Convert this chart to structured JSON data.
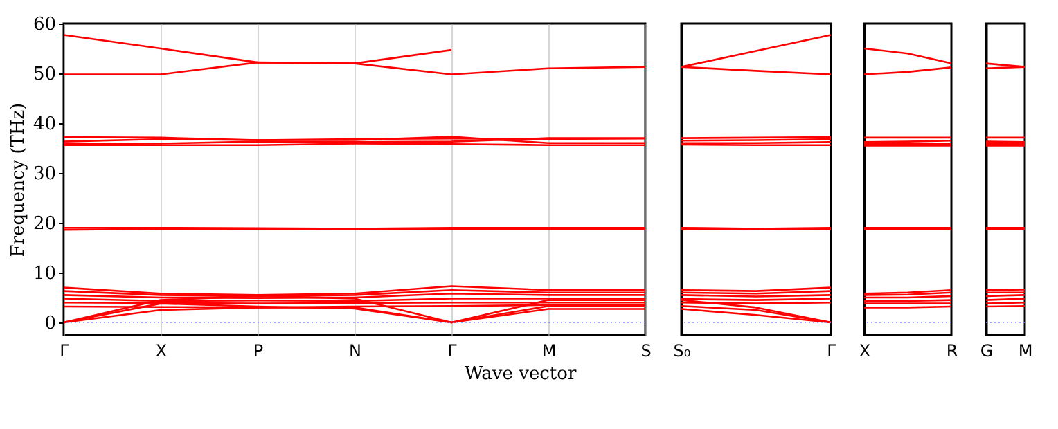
{
  "chart_data": [
    {
      "type": "line",
      "ylabel": "Frequency (THz)",
      "xlabel": "Wave vector",
      "legend": false,
      "grid": "x",
      "ylim": [
        -2.5,
        60
      ],
      "yticks": [
        0,
        10,
        20,
        30,
        40,
        50,
        60
      ],
      "categories": [
        "Γ",
        "X",
        "P",
        "N",
        "Γ",
        "M",
        "S"
      ],
      "ref_lines": [
        {
          "axis": "y",
          "value": 0,
          "color": "#8888ff",
          "line_style": "dotted"
        }
      ],
      "series": [
        {
          "color": "#ff0000",
          "values": [
            57.7,
            55,
            52.2,
            52,
            54.7,
            null,
            null
          ]
        },
        {
          "color": "#ff0000",
          "values": [
            49.8,
            49.8,
            52.2,
            52,
            49.8,
            51,
            51.3
          ]
        },
        {
          "color": "#ff0000",
          "values": [
            37.2,
            37.1,
            36.6,
            36.6,
            37.3,
            36,
            36
          ]
        },
        {
          "color": "#ff0000",
          "values": [
            36.3,
            36.8,
            36.6,
            36.8,
            36.9,
            36.8,
            36.9
          ]
        },
        {
          "color": "#ff0000",
          "values": [
            35.8,
            35.9,
            36.3,
            36.2,
            36.3,
            37,
            37
          ]
        },
        {
          "color": "#ff0000",
          "values": [
            35.6,
            35.6,
            35.6,
            35.9,
            35.8,
            35.6,
            35.6
          ]
        },
        {
          "color": "#ff0000",
          "values": [
            19,
            19,
            18.9,
            18.8,
            19,
            19,
            19
          ]
        },
        {
          "color": "#ff0000",
          "values": [
            18.6,
            18.8,
            18.8,
            18.8,
            18.8,
            18.8,
            18.8
          ]
        },
        {
          "color": "#ff0000",
          "values": [
            0,
            2.5,
            3,
            3,
            0,
            2.7,
            2.7
          ]
        },
        {
          "color": "#ff0000",
          "values": [
            0,
            3.8,
            3.2,
            2.8,
            0,
            3.3,
            3.3
          ]
        },
        {
          "color": "#ff0000",
          "values": [
            0,
            4.5,
            5.3,
            4.8,
            0,
            4.5,
            4.5
          ]
        },
        {
          "color": "#ff0000",
          "values": [
            7,
            5.8,
            5.5,
            5.8,
            7.3,
            6.5,
            6.5
          ]
        },
        {
          "color": "#ff0000",
          "values": [
            6.3,
            5.5,
            5.2,
            5.5,
            6.5,
            6,
            6
          ]
        },
        {
          "color": "#ff0000",
          "values": [
            5.5,
            5,
            4.9,
            5,
            5.8,
            5.5,
            5.5
          ]
        },
        {
          "color": "#ff0000",
          "values": [
            4.8,
            4.3,
            4.4,
            4.3,
            4.8,
            4.8,
            4.8
          ]
        },
        {
          "color": "#ff0000",
          "values": [
            4,
            3.9,
            3.8,
            3.9,
            4,
            4,
            4
          ]
        },
        {
          "color": "#ff0000",
          "values": [
            3.2,
            3.1,
            3,
            3.2,
            3.3,
            3.5,
            3.5
          ]
        }
      ]
    },
    {
      "type": "line",
      "legend": false,
      "tick_labels": "x",
      "ylim": [
        -2.5,
        60
      ],
      "categories": [
        "S₀",
        null,
        "Γ"
      ],
      "ref_lines": [
        {
          "axis": "y",
          "value": 0,
          "color": "#8888ff",
          "line_style": "dotted"
        }
      ],
      "series": [
        {
          "color": "#ff0000",
          "values": [
            51.3,
            54.5,
            57.7
          ]
        },
        {
          "color": "#ff0000",
          "values": [
            51.3,
            50.5,
            49.8
          ]
        },
        {
          "color": "#ff0000",
          "values": [
            37,
            37.1,
            37.2
          ]
        },
        {
          "color": "#ff0000",
          "values": [
            36.5,
            36.6,
            36.8
          ]
        },
        {
          "color": "#ff0000",
          "values": [
            36,
            36,
            36.2
          ]
        },
        {
          "color": "#ff0000",
          "values": [
            35.7,
            35.6,
            35.6
          ]
        },
        {
          "color": "#ff0000",
          "values": [
            19,
            18.8,
            19
          ]
        },
        {
          "color": "#ff0000",
          "values": [
            18.7,
            18.7,
            18.7
          ]
        },
        {
          "color": "#ff0000",
          "values": [
            6.5,
            6.3,
            7
          ]
        },
        {
          "color": "#ff0000",
          "values": [
            6,
            5.8,
            6.3
          ]
        },
        {
          "color": "#ff0000",
          "values": [
            5.5,
            5.2,
            5.5
          ]
        },
        {
          "color": "#ff0000",
          "values": [
            4.7,
            4.5,
            4.8
          ]
        },
        {
          "color": "#ff0000",
          "values": [
            4,
            3.8,
            4
          ]
        },
        {
          "color": "#ff0000",
          "values": [
            3.3,
            2.5,
            0
          ]
        },
        {
          "color": "#ff0000",
          "values": [
            2.7,
            1.5,
            0
          ]
        },
        {
          "color": "#ff0000",
          "values": [
            4.5,
            3,
            0
          ]
        }
      ]
    },
    {
      "type": "line",
      "legend": false,
      "tick_labels": "x",
      "ylim": [
        -2.5,
        60
      ],
      "categories": [
        "X",
        null,
        "R"
      ],
      "ref_lines": [
        {
          "axis": "y",
          "value": 0,
          "color": "#8888ff",
          "line_style": "dotted"
        }
      ],
      "series": [
        {
          "color": "#ff0000",
          "values": [
            55,
            54,
            52
          ]
        },
        {
          "color": "#ff0000",
          "values": [
            49.8,
            50.3,
            51.2
          ]
        },
        {
          "color": "#ff0000",
          "values": [
            37.1,
            37.1,
            37.1
          ]
        },
        {
          "color": "#ff0000",
          "values": [
            36.2,
            36.3,
            36.5
          ]
        },
        {
          "color": "#ff0000",
          "values": [
            35.8,
            35.8,
            35.8
          ]
        },
        {
          "color": "#ff0000",
          "values": [
            35.5,
            35.5,
            35.5
          ]
        },
        {
          "color": "#ff0000",
          "values": [
            19,
            19,
            19
          ]
        },
        {
          "color": "#ff0000",
          "values": [
            18.8,
            18.8,
            18.8
          ]
        },
        {
          "color": "#ff0000",
          "values": [
            5.8,
            6,
            6.5
          ]
        },
        {
          "color": "#ff0000",
          "values": [
            5.5,
            5.6,
            6
          ]
        },
        {
          "color": "#ff0000",
          "values": [
            5,
            5,
            5.3
          ]
        },
        {
          "color": "#ff0000",
          "values": [
            4.3,
            4.3,
            4.5
          ]
        },
        {
          "color": "#ff0000",
          "values": [
            3.8,
            3.8,
            3.8
          ]
        },
        {
          "color": "#ff0000",
          "values": [
            3,
            3,
            3.2
          ]
        }
      ]
    },
    {
      "type": "line",
      "legend": false,
      "tick_labels": "x",
      "ylim": [
        -2.5,
        60
      ],
      "categories": [
        "G",
        "M"
      ],
      "ref_lines": [
        {
          "axis": "y",
          "value": 0,
          "color": "#8888ff",
          "line_style": "dotted"
        }
      ],
      "series": [
        {
          "color": "#ff0000",
          "values": [
            52,
            51.3
          ]
        },
        {
          "color": "#ff0000",
          "values": [
            51,
            51.3
          ]
        },
        {
          "color": "#ff0000",
          "values": [
            37.1,
            37.1
          ]
        },
        {
          "color": "#ff0000",
          "values": [
            36.3,
            36.2
          ]
        },
        {
          "color": "#ff0000",
          "values": [
            35.8,
            35.8
          ]
        },
        {
          "color": "#ff0000",
          "values": [
            35.5,
            35.5
          ]
        },
        {
          "color": "#ff0000",
          "values": [
            19,
            19
          ]
        },
        {
          "color": "#ff0000",
          "values": [
            18.8,
            18.8
          ]
        },
        {
          "color": "#ff0000",
          "values": [
            6.5,
            6.6
          ]
        },
        {
          "color": "#ff0000",
          "values": [
            6,
            6
          ]
        },
        {
          "color": "#ff0000",
          "values": [
            5.3,
            5.5
          ]
        },
        {
          "color": "#ff0000",
          "values": [
            4.5,
            4.8
          ]
        },
        {
          "color": "#ff0000",
          "values": [
            3.8,
            4
          ]
        },
        {
          "color": "#ff0000",
          "values": [
            3.2,
            3.3
          ]
        }
      ]
    }
  ]
}
